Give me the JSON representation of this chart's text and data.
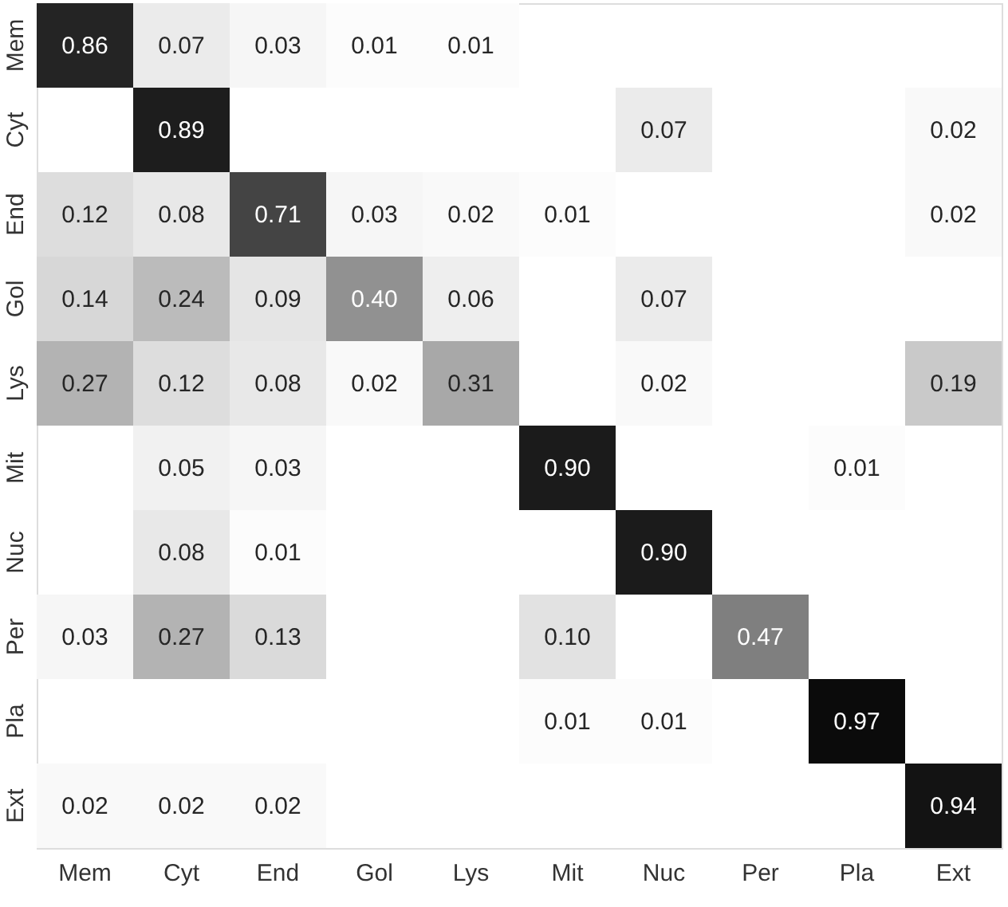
{
  "chart_data": {
    "type": "heatmap",
    "categories": [
      "Mem",
      "Cyt",
      "End",
      "Gol",
      "Lys",
      "Mit",
      "Nuc",
      "Per",
      "Pla",
      "Ext"
    ],
    "y_categories": [
      "Mem",
      "Cyt",
      "End",
      "Gol",
      "Lys",
      "Mit",
      "Nuc",
      "Per",
      "Pla",
      "Ext"
    ],
    "cells": [
      [
        0.86,
        0.07,
        0.03,
        0.01,
        0.01,
        null,
        null,
        null,
        null,
        null
      ],
      [
        null,
        0.89,
        null,
        null,
        null,
        null,
        0.07,
        null,
        null,
        0.02
      ],
      [
        0.12,
        0.08,
        0.71,
        0.03,
        0.02,
        0.01,
        null,
        null,
        null,
        0.02
      ],
      [
        0.14,
        0.24,
        0.09,
        0.4,
        0.06,
        null,
        0.07,
        null,
        null,
        null
      ],
      [
        0.27,
        0.12,
        0.08,
        0.02,
        0.31,
        null,
        0.02,
        null,
        null,
        0.19
      ],
      [
        null,
        0.05,
        0.03,
        null,
        null,
        0.9,
        null,
        null,
        0.01,
        null
      ],
      [
        null,
        0.08,
        0.01,
        null,
        null,
        null,
        0.9,
        null,
        null,
        null
      ],
      [
        0.03,
        0.27,
        0.13,
        null,
        null,
        0.1,
        null,
        0.47,
        null,
        null
      ],
      [
        null,
        null,
        null,
        null,
        null,
        0.01,
        0.01,
        null,
        0.97,
        null
      ],
      [
        0.02,
        0.02,
        0.02,
        null,
        null,
        null,
        null,
        null,
        null,
        0.94
      ]
    ],
    "cell_labels": [
      [
        "0.86",
        "0.07",
        "0.03",
        "0.01",
        "0.01",
        null,
        null,
        null,
        null,
        null
      ],
      [
        null,
        "0.89",
        null,
        null,
        null,
        null,
        "0.07",
        null,
        null,
        "0.02"
      ],
      [
        "0.12",
        "0.08",
        "0.71",
        "0.03",
        "0.02",
        "0.01",
        null,
        null,
        null,
        "0.02"
      ],
      [
        "0.14",
        "0.24",
        "0.09",
        "0.40",
        "0.06",
        null,
        "0.07",
        null,
        null,
        null
      ],
      [
        "0.27",
        "0.12",
        "0.08",
        "0.02",
        "0.31",
        null,
        "0.02",
        null,
        null,
        "0.19"
      ],
      [
        null,
        "0.05",
        "0.03",
        null,
        null,
        "0.90",
        null,
        null,
        "0.01",
        null
      ],
      [
        null,
        "0.08",
        "0.01",
        null,
        null,
        null,
        "0.90",
        null,
        null,
        null
      ],
      [
        "0.03",
        "0.27",
        "0.13",
        null,
        null,
        "0.10",
        null,
        "0.47",
        null,
        null
      ],
      [
        null,
        null,
        null,
        null,
        null,
        "0.01",
        "0.01",
        null,
        "0.97",
        null
      ],
      [
        "0.02",
        "0.02",
        "0.02",
        null,
        null,
        null,
        null,
        null,
        null,
        "0.94"
      ]
    ]
  }
}
